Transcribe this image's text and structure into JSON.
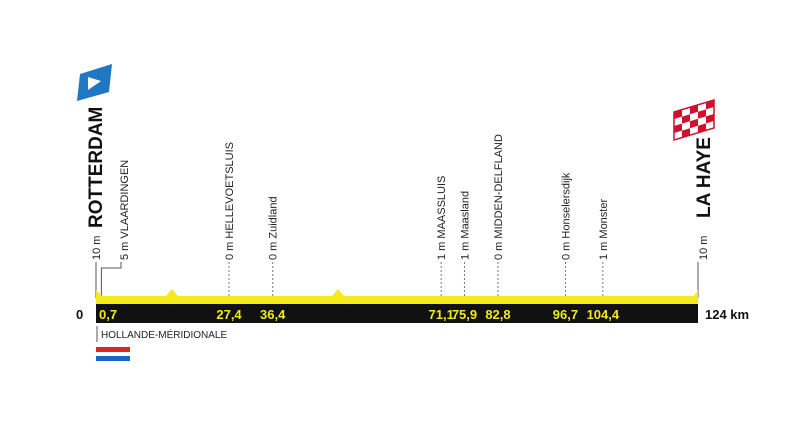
{
  "chart_data": {
    "type": "area",
    "total_km": 124,
    "axis": {
      "start_label": "0",
      "end_label": "124 km"
    },
    "start": {
      "city": "ROTTERDAM",
      "altitude_label": "10 m",
      "icon": "start-flag-icon",
      "color": "#1f78c1"
    },
    "finish": {
      "city": "LA HAYE",
      "altitude_label": "10 m",
      "icon": "checkered-flag-icon",
      "color": "#d0112b"
    },
    "waypoints": [
      {
        "km": 0.7,
        "km_label": "0,7",
        "name": "VLAARDINGEN",
        "altitude_label": "5 m"
      },
      {
        "km": 27.4,
        "km_label": "27,4",
        "name": "HELLEVOETSLUIS",
        "altitude_label": "0 m"
      },
      {
        "km": 36.4,
        "km_label": "36,4",
        "name": "Zuidland",
        "altitude_label": "0 m"
      },
      {
        "km": 71.1,
        "km_label": "71,1",
        "name": "MAASSLUIS",
        "altitude_label": "1 m"
      },
      {
        "km": 75.9,
        "km_label": "75,9",
        "name": "Maasland",
        "altitude_label": "1 m"
      },
      {
        "km": 82.8,
        "km_label": "82,8",
        "name": "MIDDEN-DELFLAND",
        "altitude_label": "0 m"
      },
      {
        "km": 96.7,
        "km_label": "96,7",
        "name": "Honselersdijk",
        "altitude_label": "0 m"
      },
      {
        "km": 104.4,
        "km_label": "104,4",
        "name": "Monster",
        "altitude_label": "1 m"
      }
    ],
    "profile_colors": {
      "fill": "#f4ea1b",
      "band": "#111111",
      "km_text": "#f4ea1b"
    },
    "region": {
      "name": "HOLLANDE-MÉRIDIONALE",
      "flag_colors": [
        "#d52b1e",
        "#ffffff",
        "#1e64c8"
      ]
    }
  }
}
